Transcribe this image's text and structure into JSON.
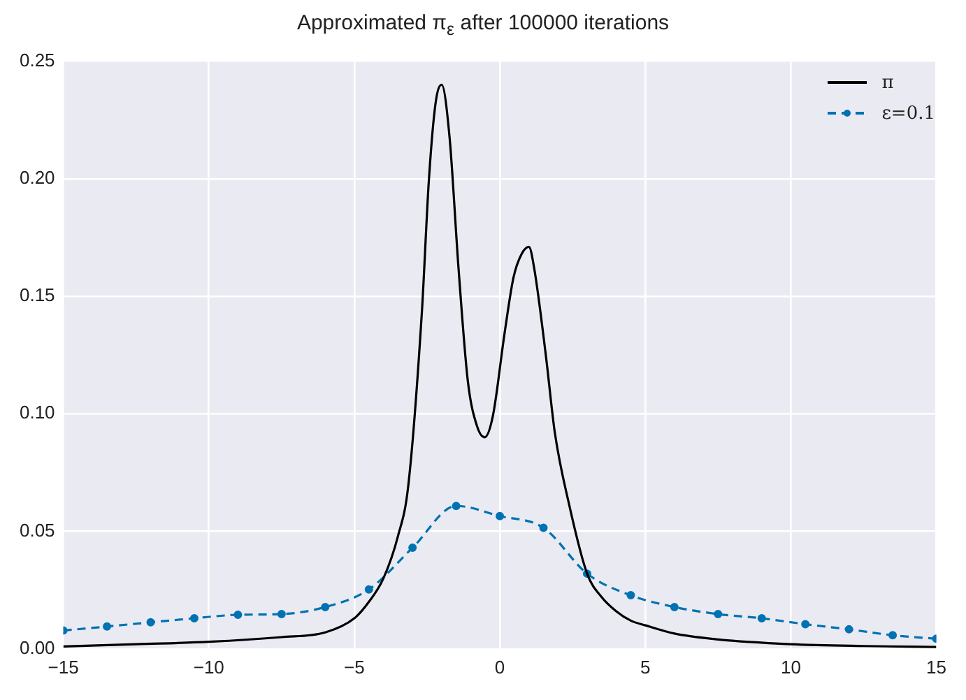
{
  "chart_data": {
    "type": "line",
    "title": "Approximated π$_{ε}$ after 100000 iterations",
    "xlim": [
      -15,
      15
    ],
    "xticks": [
      -15,
      -10,
      -5,
      0,
      5,
      10,
      15
    ],
    "ylim": [
      0,
      0.25
    ],
    "yticks": [
      {
        "value": 0,
        "label": "0.00"
      },
      0.05,
      {
        "value": 0.1,
        "label": "0.10"
      },
      0.15,
      {
        "value": 0.2,
        "label": "0.20"
      },
      0.25
    ],
    "grid": true,
    "legend": "top right",
    "series": [
      {
        "name": "π",
        "color": "#000000",
        "marker": "none",
        "line_style": "solid",
        "x": [
          -15,
          -12.5,
          -10,
          -7.5,
          -6,
          -5,
          -4.5,
          -4,
          -3.5,
          -3.15,
          -2.68,
          -2.44,
          -2.21,
          -2,
          -1.73,
          -1.42,
          -1.1,
          -0.79,
          -0.52,
          -0.24,
          0.16,
          0.47,
          0.75,
          1,
          1.18,
          1.58,
          1.89,
          2.37,
          3,
          3.5,
          4,
          4.5,
          5,
          6,
          7.5,
          10,
          12.5,
          15
        ],
        "values": [
          0.001,
          0.002,
          0.003,
          0.005,
          0.007,
          0.013,
          0.02,
          0.03,
          0.048,
          0.069,
          0.143,
          0.199,
          0.232,
          0.24,
          0.218,
          0.162,
          0.114,
          0.095,
          0.09,
          0.099,
          0.134,
          0.158,
          0.168,
          0.171,
          0.162,
          0.125,
          0.092,
          0.062,
          0.032,
          0.022,
          0.016,
          0.012,
          0.01,
          0.0065,
          0.004,
          0.002,
          0.0012,
          0.0008
        ]
      },
      {
        "name": "ε=0.1",
        "color": "#0072b2",
        "marker": "circle",
        "line_style": "dashed",
        "x": [
          -15,
          -13.5,
          -12,
          -10.5,
          -9,
          -7.5,
          -6,
          -4.5,
          -3,
          -1.5,
          0,
          1.5,
          3,
          4.5,
          6,
          7.5,
          9,
          10.5,
          12,
          13.5,
          15
        ],
        "values": [
          0.0078,
          0.0095,
          0.0113,
          0.013,
          0.0145,
          0.0148,
          0.0178,
          0.0253,
          0.043,
          0.0608,
          0.0565,
          0.0515,
          0.032,
          0.0228,
          0.0178,
          0.0148,
          0.013,
          0.0105,
          0.0083,
          0.0058,
          0.0043
        ]
      }
    ]
  }
}
